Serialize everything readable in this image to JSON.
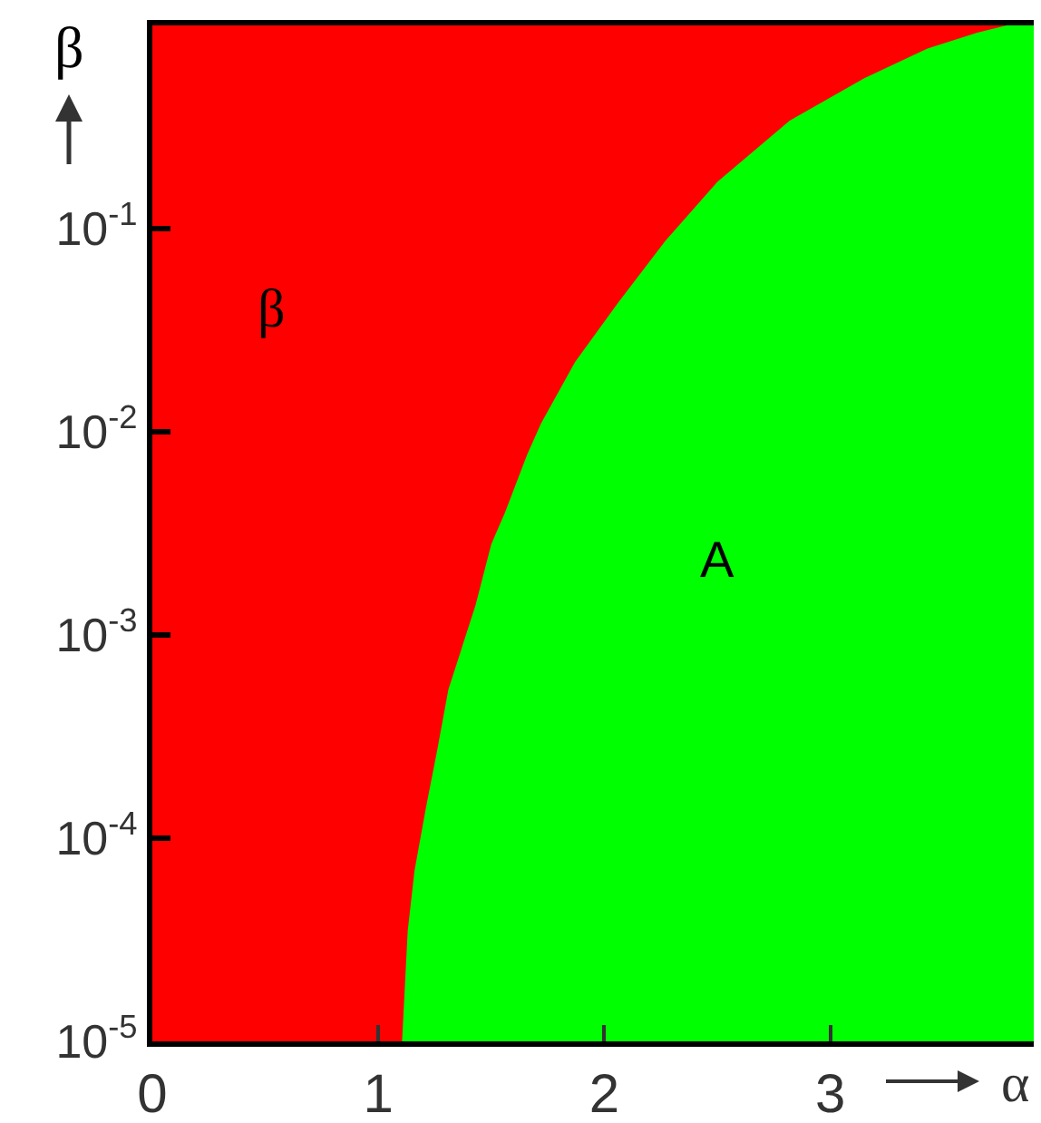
{
  "chart_data": {
    "type": "area",
    "xlabel": "α",
    "ylabel": "β",
    "x": [
      1.105,
      1.13,
      1.16,
      1.21,
      1.26,
      1.31,
      1.43,
      1.5,
      1.56,
      1.66,
      1.72,
      1.87,
      2.06,
      2.27,
      2.5,
      2.82,
      3.15,
      3.43,
      3.65,
      3.78,
      3.9
    ],
    "series": [
      {
        "name": "A",
        "color": "#00ff00",
        "values": [
          1e-05,
          3.5e-05,
          6.9e-05,
          0.00014,
          0.00027,
          0.00054,
          0.0014,
          0.0028,
          0.004,
          0.0078,
          0.011,
          0.022,
          0.043,
          0.087,
          0.17,
          0.34,
          0.55,
          0.77,
          0.92,
          1.0,
          1.0
        ]
      }
    ],
    "xlim": [
      0,
      3.9
    ],
    "ylim": [
      1e-05,
      1
    ],
    "log": "y",
    "xticks": [
      0,
      1,
      2,
      3
    ],
    "yticks": [
      {
        "value": 1e-05,
        "label": "10$^{-5}$"
      },
      {
        "value": 0.0001,
        "label": "10$^{-4}$"
      },
      {
        "value": 0.001,
        "label": "10$^{-3}$"
      },
      {
        "value": 0.01,
        "label": "10$^{-2}$"
      },
      {
        "value": 0.1,
        "label": "10$^{-1}$"
      }
    ],
    "bands": [
      {
        "axis": "x",
        "from": 0,
        "to": 3.9,
        "color": "#ff0000",
        "label": "β"
      }
    ]
  }
}
